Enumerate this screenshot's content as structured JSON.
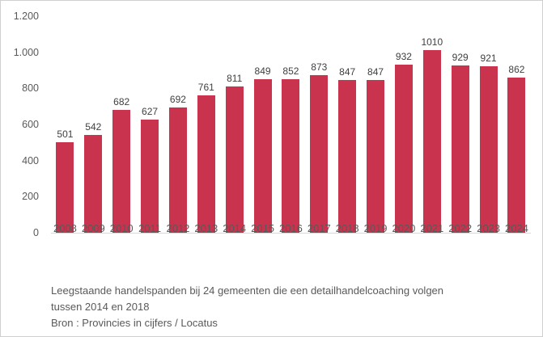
{
  "chart_data": {
    "type": "bar",
    "title": "",
    "categories": [
      "2008",
      "2009",
      "2010",
      "2011",
      "2012",
      "2013",
      "2014",
      "2015",
      "2016",
      "2017",
      "2018",
      "2019",
      "2020",
      "2021",
      "2022",
      "2023",
      "2024"
    ],
    "values": [
      501,
      542,
      682,
      627,
      692,
      761,
      811,
      849,
      852,
      873,
      847,
      847,
      932,
      1010,
      929,
      921,
      862
    ],
    "value_labels": [
      "501",
      "542",
      "682",
      "627",
      "692",
      "761",
      "811",
      "849",
      "852",
      "873",
      "847",
      "847",
      "932",
      "1010",
      "929",
      "921",
      "862"
    ],
    "y_ticks": [
      {
        "label": "1.200",
        "value": 1200
      },
      {
        "label": "1.000",
        "value": 1000
      },
      {
        "label": "800",
        "value": 800
      },
      {
        "label": "600",
        "value": 600
      },
      {
        "label": "400",
        "value": 400
      },
      {
        "label": "200",
        "value": 200
      },
      {
        "label": "0",
        "value": 0
      }
    ],
    "ylim": [
      0,
      1200
    ],
    "grid": false,
    "legend": "none",
    "xlabel": "",
    "ylabel": ""
  },
  "caption": {
    "line1": "Leegstaande handelspanden bij 24 gemeenten die een detailhandelcoaching volgen",
    "line2": "tussen 2014 en 2018",
    "source": "Bron : Provincies in cijfers / Locatus"
  },
  "colors": {
    "bar": "#C9334D",
    "axis_line": "#D9D9D9",
    "tick_text": "#595959",
    "value_text": "#404040",
    "caption_text": "#595959",
    "frame_border": "#D0D0D0",
    "background": "#FFFFFF"
  }
}
